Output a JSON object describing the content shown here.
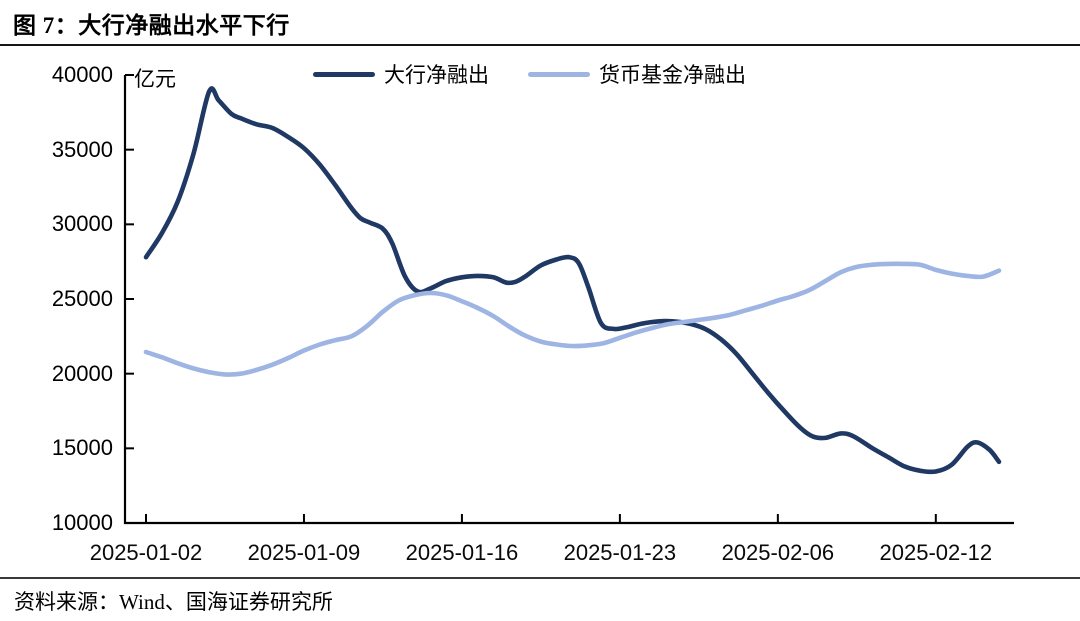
{
  "figure": {
    "title": "图 7：大行净融出水平下行",
    "source": "资料来源：Wind、国海证券研究所"
  },
  "chart_data": {
    "type": "line",
    "title": "大行净融出水平下行",
    "xlabel": "",
    "ylabel": "亿元",
    "ylim": [
      10000,
      40000
    ],
    "y_ticks": [
      10000,
      15000,
      20000,
      25000,
      30000,
      35000,
      40000
    ],
    "x_tick_labels": [
      "2025-01-02",
      "2025-01-09",
      "2025-01-16",
      "2025-01-23",
      "2025-02-06",
      "2025-02-12"
    ],
    "x_tick_positions": [
      0,
      5,
      10,
      15,
      20,
      25
    ],
    "x_range": [
      0,
      27
    ],
    "grid": false,
    "legend_position": "top",
    "axis_color": "#000000",
    "series": [
      {
        "name": "大行净融出",
        "color": "#1F3864",
        "points": [
          [
            0,
            27800
          ],
          [
            0.5,
            29400
          ],
          [
            1,
            31500
          ],
          [
            1.5,
            34700
          ],
          [
            2,
            38900
          ],
          [
            2.3,
            38300
          ],
          [
            2.7,
            37400
          ],
          [
            3,
            37100
          ],
          [
            3.5,
            36700
          ],
          [
            4,
            36450
          ],
          [
            4.5,
            35850
          ],
          [
            5,
            35100
          ],
          [
            5.5,
            34000
          ],
          [
            6,
            32600
          ],
          [
            6.5,
            31100
          ],
          [
            6.8,
            30400
          ],
          [
            7.1,
            30100
          ],
          [
            7.5,
            29700
          ],
          [
            7.8,
            28700
          ],
          [
            8.2,
            26500
          ],
          [
            8.6,
            25500
          ],
          [
            9,
            25700
          ],
          [
            9.5,
            26200
          ],
          [
            10,
            26450
          ],
          [
            10.5,
            26550
          ],
          [
            11,
            26450
          ],
          [
            11.4,
            26100
          ],
          [
            11.7,
            26150
          ],
          [
            12,
            26500
          ],
          [
            12.5,
            27250
          ],
          [
            13,
            27650
          ],
          [
            13.4,
            27800
          ],
          [
            13.7,
            27400
          ],
          [
            14,
            25800
          ],
          [
            14.4,
            23400
          ],
          [
            14.8,
            23000
          ],
          [
            15.2,
            23100
          ],
          [
            15.7,
            23350
          ],
          [
            16.2,
            23500
          ],
          [
            16.7,
            23500
          ],
          [
            17.2,
            23350
          ],
          [
            17.7,
            23000
          ],
          [
            18.2,
            22300
          ],
          [
            18.7,
            21300
          ],
          [
            19.2,
            20000
          ],
          [
            19.7,
            18700
          ],
          [
            20.2,
            17500
          ],
          [
            20.7,
            16400
          ],
          [
            21.1,
            15800
          ],
          [
            21.5,
            15700
          ],
          [
            22,
            16000
          ],
          [
            22.4,
            15800
          ],
          [
            23,
            15000
          ],
          [
            23.5,
            14400
          ],
          [
            24,
            13800
          ],
          [
            24.5,
            13500
          ],
          [
            25,
            13450
          ],
          [
            25.5,
            13900
          ],
          [
            26,
            15100
          ],
          [
            26.3,
            15400
          ],
          [
            26.7,
            14900
          ],
          [
            27,
            14100
          ]
        ]
      },
      {
        "name": "货币基金净融出",
        "color": "#9EB5E3",
        "points": [
          [
            0,
            21450
          ],
          [
            0.5,
            21100
          ],
          [
            1,
            20700
          ],
          [
            1.5,
            20350
          ],
          [
            2,
            20100
          ],
          [
            2.5,
            19950
          ],
          [
            3,
            20000
          ],
          [
            3.5,
            20250
          ],
          [
            4,
            20600
          ],
          [
            4.5,
            21050
          ],
          [
            5,
            21550
          ],
          [
            5.5,
            21950
          ],
          [
            6,
            22250
          ],
          [
            6.5,
            22500
          ],
          [
            7,
            23200
          ],
          [
            7.5,
            24150
          ],
          [
            8,
            24900
          ],
          [
            8.5,
            25250
          ],
          [
            9,
            25400
          ],
          [
            9.5,
            25250
          ],
          [
            10,
            24850
          ],
          [
            10.5,
            24400
          ],
          [
            11,
            23850
          ],
          [
            11.5,
            23150
          ],
          [
            12,
            22550
          ],
          [
            12.5,
            22150
          ],
          [
            13,
            21950
          ],
          [
            13.5,
            21850
          ],
          [
            14,
            21900
          ],
          [
            14.5,
            22050
          ],
          [
            15,
            22400
          ],
          [
            15.5,
            22750
          ],
          [
            16,
            23050
          ],
          [
            16.5,
            23300
          ],
          [
            17,
            23450
          ],
          [
            17.5,
            23600
          ],
          [
            18,
            23750
          ],
          [
            18.5,
            23950
          ],
          [
            19,
            24250
          ],
          [
            19.5,
            24550
          ],
          [
            20,
            24900
          ],
          [
            20.5,
            25200
          ],
          [
            21,
            25600
          ],
          [
            21.5,
            26200
          ],
          [
            22,
            26800
          ],
          [
            22.5,
            27150
          ],
          [
            23,
            27300
          ],
          [
            23.5,
            27350
          ],
          [
            24,
            27350
          ],
          [
            24.5,
            27300
          ],
          [
            25,
            26950
          ],
          [
            25.5,
            26700
          ],
          [
            26,
            26550
          ],
          [
            26.5,
            26500
          ],
          [
            27,
            26900
          ]
        ]
      }
    ]
  }
}
